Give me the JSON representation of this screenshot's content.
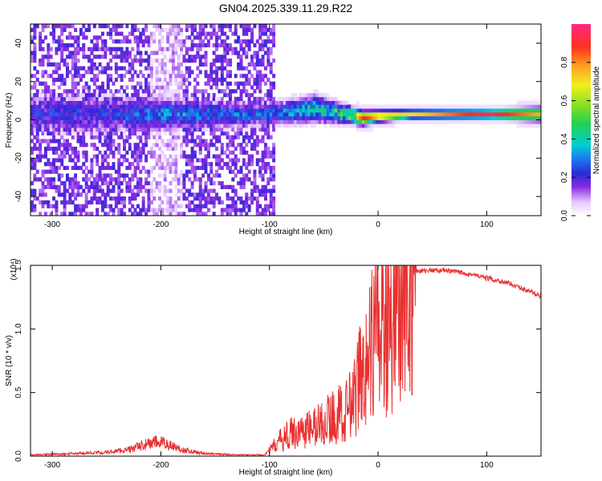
{
  "title": "GN04.2025.339.11.29.R22",
  "chart_data": [
    {
      "type": "heatmap",
      "xlabel": "Height of straight line (km)",
      "ylabel": "Frequency (Hz)",
      "xlim": [
        -320,
        150
      ],
      "ylim": [
        -50,
        50
      ],
      "xticks": [
        -300,
        -200,
        -100,
        0,
        100
      ],
      "xtick_labels": [
        "-300",
        "-200",
        "-100",
        "0",
        "100"
      ],
      "yticks": [
        -40,
        -20,
        0,
        20,
        40
      ],
      "ytick_labels": [
        "-40",
        "-20",
        "0",
        "20",
        "40"
      ],
      "colorbar": {
        "label": "Normalized spectral amplitude",
        "range": [
          0,
          1
        ],
        "ticks": [
          0.0,
          0.2,
          0.4,
          0.6,
          0.8
        ],
        "tick_labels": [
          "0.0",
          "0.2",
          "0.4",
          "0.6",
          "0.8"
        ]
      },
      "ridge": [
        {
          "x": -250,
          "center": 2,
          "halfwidth": 8,
          "amp": 0.25
        },
        {
          "x": -200,
          "center": 2,
          "halfwidth": 7,
          "amp": 0.35
        },
        {
          "x": -100,
          "center": 2,
          "halfwidth": 5,
          "amp": 0.3
        },
        {
          "x": -60,
          "center": 5,
          "halfwidth": 6,
          "amp": 0.45
        },
        {
          "x": -30,
          "center": 2,
          "halfwidth": 4,
          "amp": 0.55
        },
        {
          "x": -15,
          "center": 0,
          "halfwidth": 3,
          "amp": 0.9
        },
        {
          "x": 0,
          "center": 1,
          "halfwidth": 2.5,
          "amp": 0.8
        },
        {
          "x": 30,
          "center": 2,
          "halfwidth": 2,
          "amp": 0.7
        },
        {
          "x": 100,
          "center": 2,
          "halfwidth": 2,
          "amp": 0.95
        },
        {
          "x": 150,
          "center": 2,
          "halfwidth": 3,
          "amp": 0.75
        }
      ]
    },
    {
      "type": "line",
      "xlabel": "Height of straight line (km)",
      "ylabel": "SNR (10 * v/v)",
      "y_scale_label": "(x10⁴)",
      "xlim": [
        -320,
        150
      ],
      "ylim": [
        0,
        1.5
      ],
      "xticks": [
        -300,
        -200,
        -100,
        0,
        100
      ],
      "xtick_labels": [
        "-300",
        "-200",
        "-100",
        "0",
        "100"
      ],
      "yticks": [
        0,
        0.5,
        1.0,
        1.5
      ],
      "ytick_labels": [
        "0.0",
        "0.5",
        "1.0",
        "1.5"
      ],
      "color": "#e83030",
      "series": [
        {
          "name": "SNR",
          "x": [
            -320,
            -280,
            -250,
            -230,
            -215,
            -205,
            -195,
            -180,
            -160,
            -130,
            -105,
            -100,
            -90,
            -80,
            -70,
            -60,
            -50,
            -40,
            -30,
            -25,
            -20,
            -10,
            0,
            10,
            20,
            30,
            40,
            60,
            80,
            100,
            120,
            150
          ],
          "y": [
            0.01,
            0.02,
            0.03,
            0.05,
            0.09,
            0.11,
            0.1,
            0.05,
            0.02,
            0.01,
            0.01,
            0.05,
            0.14,
            0.2,
            0.22,
            0.25,
            0.3,
            0.35,
            0.38,
            0.45,
            0.6,
            0.85,
            1.1,
            1.25,
            1.35,
            1.45,
            1.46,
            1.46,
            1.44,
            1.4,
            1.36,
            1.26
          ]
        }
      ]
    }
  ]
}
